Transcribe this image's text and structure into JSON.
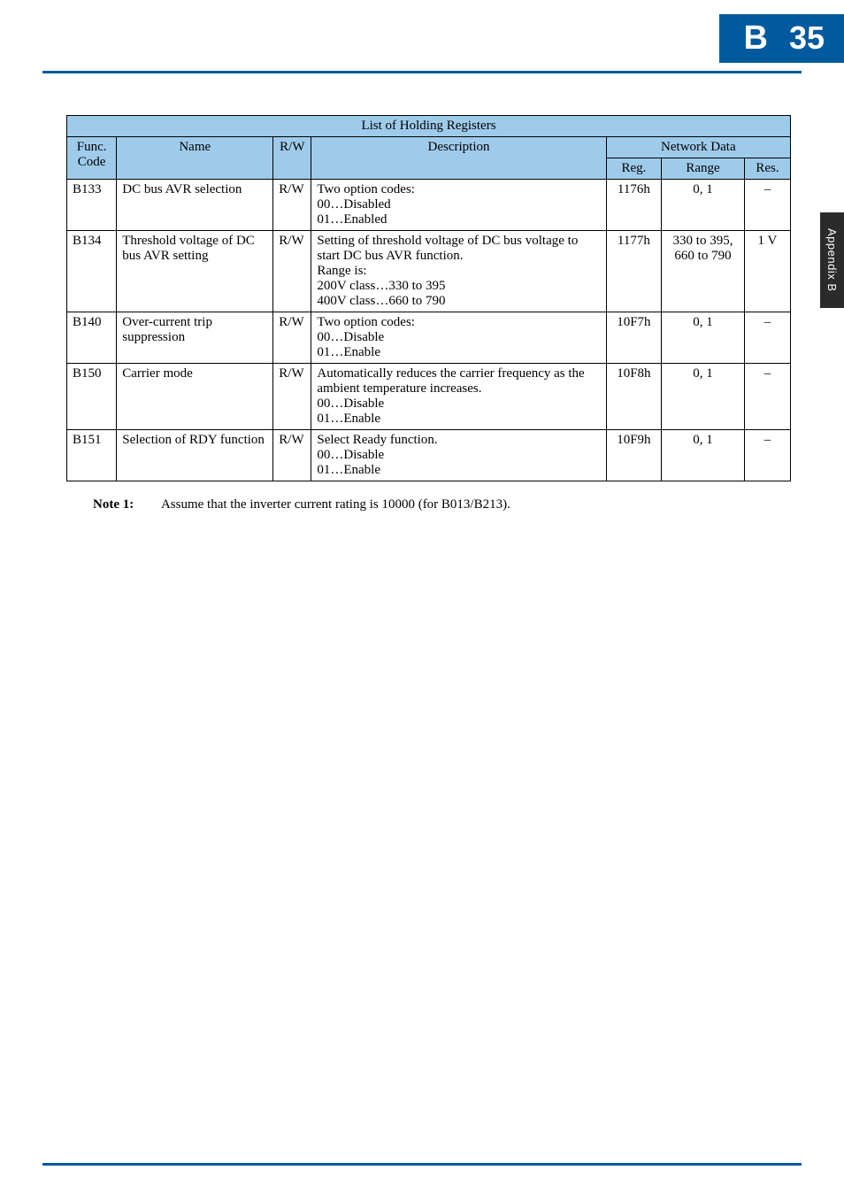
{
  "header": {
    "section_letter": "B",
    "page_number": "35"
  },
  "side_tab": {
    "label": "Appendix B"
  },
  "table": {
    "title": "List of Holding Registers",
    "headers": {
      "func_code": "Func. Code",
      "name": "Name",
      "rw": "R/W",
      "description": "Description",
      "network_data": "Network Data",
      "reg": "Reg.",
      "range": "Range",
      "res": "Res."
    },
    "rows": [
      {
        "func_code": "B133",
        "name": "DC bus AVR selection",
        "rw": "R/W",
        "description": "Two option codes:\n00…Disabled\n01…Enabled",
        "reg": "1176h",
        "range": "0, 1",
        "res": "–"
      },
      {
        "func_code": "B134",
        "name": "Threshold voltage of DC bus AVR setting",
        "rw": "R/W",
        "description": "Setting of threshold voltage of DC bus voltage to start DC bus AVR function.\nRange is:\n200V class…330 to 395\n400V class…660 to 790",
        "reg": "1177h",
        "range": "330 to 395, 660 to 790",
        "res": "1 V"
      },
      {
        "func_code": "B140",
        "name": "Over-current trip suppression",
        "rw": "R/W",
        "description": "Two option codes:\n00…Disable\n01…Enable",
        "reg": "10F7h",
        "range": "0, 1",
        "res": "–"
      },
      {
        "func_code": "B150",
        "name": "Carrier mode",
        "rw": "R/W",
        "description": "Automatically reduces the carrier frequency as the ambient temperature increases.\n00…Disable\n01…Enable",
        "reg": "10F8h",
        "range": "0, 1",
        "res": "–"
      },
      {
        "func_code": "B151",
        "name": "Selection of RDY function",
        "rw": "R/W",
        "description": "Select Ready function.\n00…Disable\n01…Enable",
        "reg": "10F9h",
        "range": "0, 1",
        "res": "–"
      }
    ]
  },
  "note": {
    "label": "Note 1:",
    "text": "Assume that the inverter current rating is 10000 (for B013/B213)."
  },
  "colors": {
    "accent": "#015a9e",
    "table_header_bg": "#9fcbeb",
    "side_tab_bg": "#2b2b2b",
    "text": "#000000",
    "background": "#ffffff"
  },
  "typography": {
    "body_font": "Times New Roman / Century Schoolbook serif",
    "body_size_pt": 11,
    "header_font": "Arial bold",
    "header_size_pt": 28
  }
}
